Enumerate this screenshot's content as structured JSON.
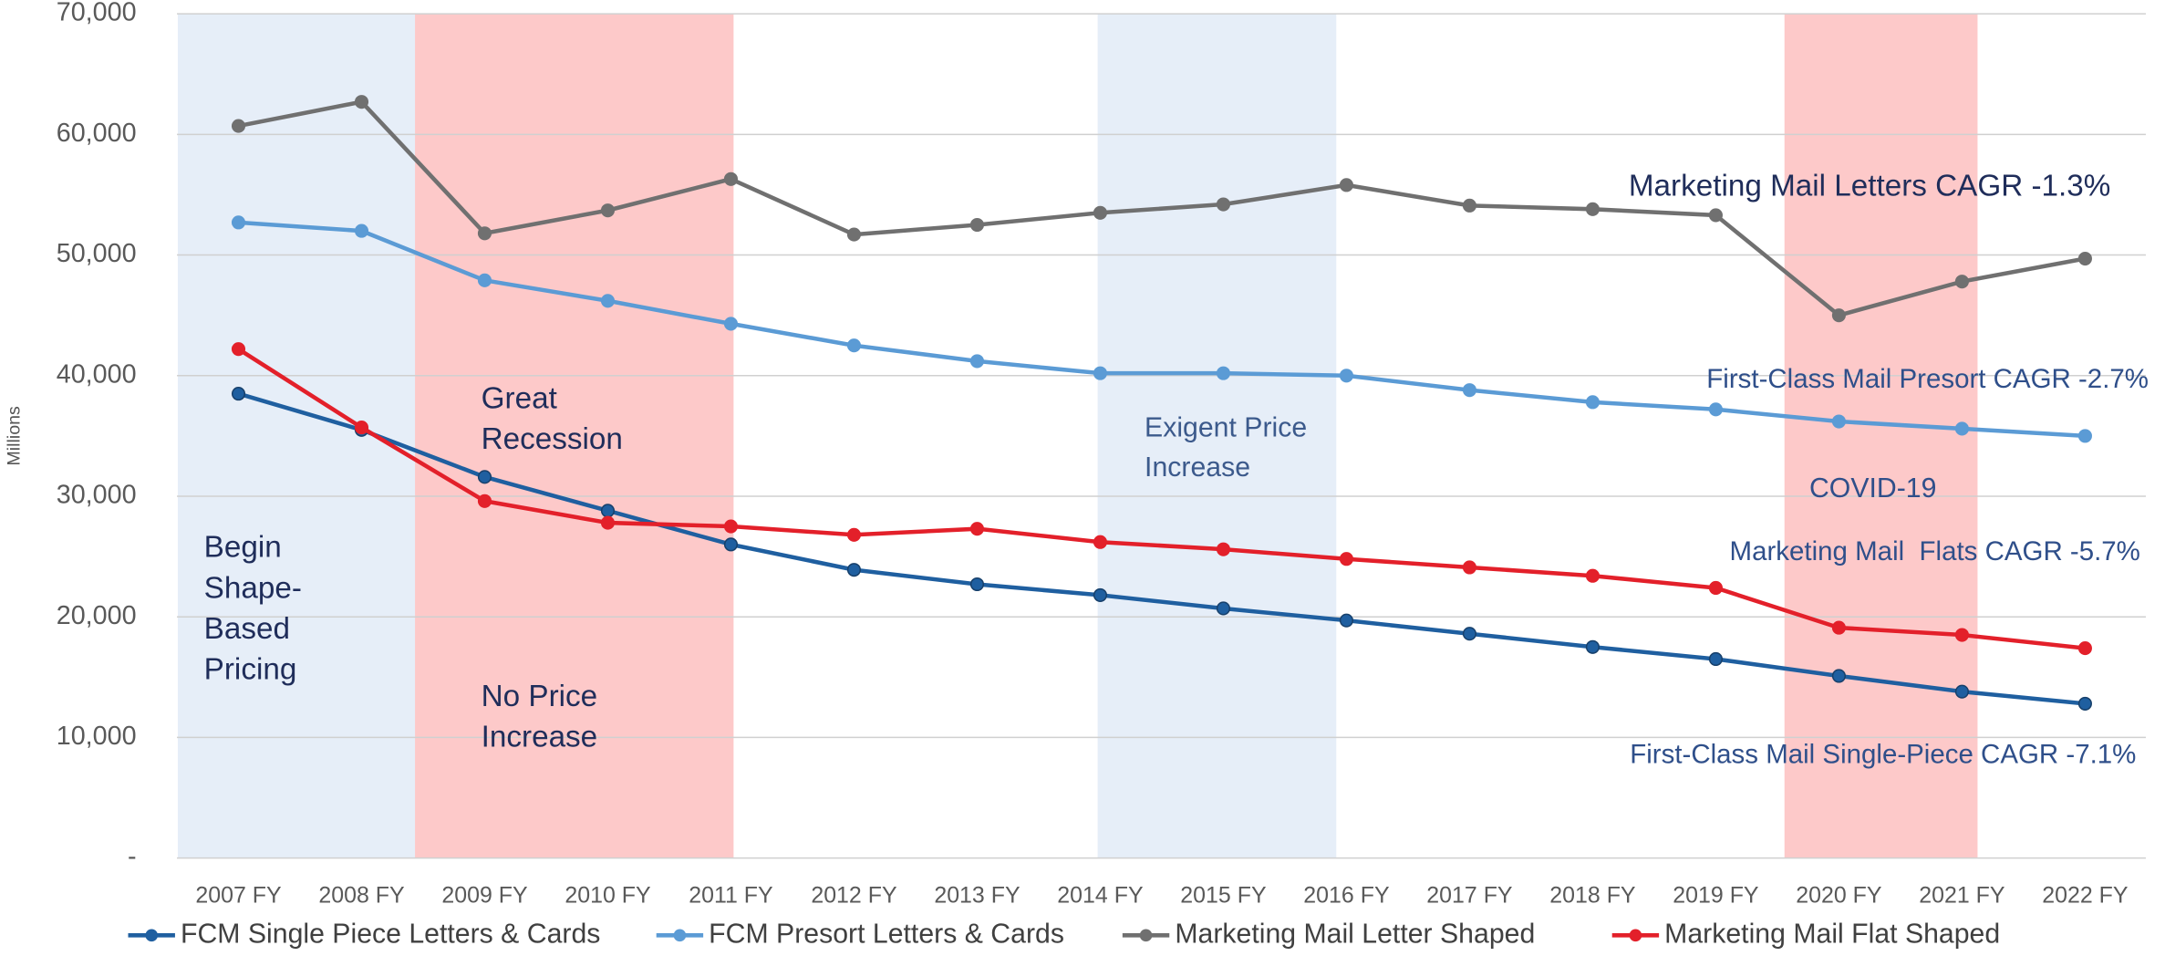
{
  "chart_data": {
    "type": "line",
    "categories": [
      "2007 FY",
      "2008 FY",
      "2009 FY",
      "2010 FY",
      "2011 FY",
      "2012 FY",
      "2013 FY",
      "2014 FY",
      "2015 FY",
      "2016 FY",
      "2017 FY",
      "2018 FY",
      "2019 FY",
      "2020 FY",
      "2021 FY",
      "2022 FY"
    ],
    "series": [
      {
        "name": "FCM Single Piece Letters & Cards",
        "color": "#1f5fa0",
        "values": [
          38500,
          35500,
          31600,
          28800,
          26000,
          23900,
          22700,
          21800,
          20700,
          19700,
          18600,
          17500,
          16500,
          15100,
          13800,
          12800
        ]
      },
      {
        "name": "FCM Presort Letters & Cards",
        "color": "#5b9bd5",
        "values": [
          52700,
          52000,
          47900,
          46200,
          44300,
          42500,
          41200,
          40200,
          40200,
          40000,
          38800,
          37800,
          37200,
          36200,
          35600,
          35000
        ]
      },
      {
        "name": "Marketing Mail Letter Shaped",
        "color": "#707070",
        "values": [
          60700,
          62700,
          51800,
          53700,
          56300,
          51700,
          52500,
          53500,
          54200,
          55800,
          54100,
          53800,
          53300,
          45000,
          47800,
          49700
        ]
      },
      {
        "name": "Marketing Mail Flat Shaped",
        "color": "#e3202a",
        "values": [
          42200,
          35700,
          29600,
          27800,
          27500,
          26800,
          27300,
          26200,
          25600,
          24800,
          24100,
          23400,
          22400,
          19100,
          18500,
          17400
        ]
      }
    ],
    "ylabel": "Millions",
    "ylim": [
      0,
      70000
    ],
    "yticks": [
      {
        "value": 0,
        "label": "-"
      },
      {
        "value": 10000,
        "label": "10,000"
      },
      {
        "value": 20000,
        "label": "20,000"
      },
      {
        "value": 30000,
        "label": "30,000"
      },
      {
        "value": 40000,
        "label": "40,000"
      },
      {
        "value": 50000,
        "label": "50,000"
      },
      {
        "value": 60000,
        "label": "60,000"
      },
      {
        "value": 70000,
        "label": "70,000"
      }
    ],
    "grid": true,
    "legend": "bottom",
    "annotations": [
      {
        "lines": [
          "Begin",
          "Shape-",
          "Based",
          "Pricing"
        ]
      },
      {
        "lines": [
          "Great",
          "Recession"
        ]
      },
      {
        "lines": [
          "No Price",
          "Increase"
        ]
      },
      {
        "lines": [
          "Exigent Price",
          "Increase"
        ]
      },
      {
        "lines": [
          "COVID-19"
        ]
      },
      {
        "lines": [
          "Marketing Mail Letters CAGR -1.3%"
        ]
      },
      {
        "lines": [
          "First-Class Mail Presort CAGR -2.7%"
        ]
      },
      {
        "lines": [
          "Marketing Mail  Flats CAGR -5.7%"
        ]
      },
      {
        "lines": [
          "First-Class Mail Single-Piece CAGR -7.1%"
        ]
      }
    ]
  }
}
